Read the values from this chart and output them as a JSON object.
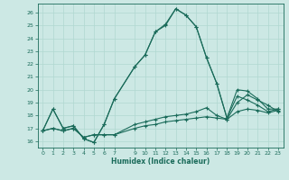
{
  "xlabel": "Humidex (Indice chaleur)",
  "background_color": "#cce8e4",
  "grid_color": "#b0d8d0",
  "line_color": "#1a6b5a",
  "xlim": [
    -0.5,
    23.5
  ],
  "ylim": [
    15.5,
    26.7
  ],
  "xticks": [
    0,
    1,
    2,
    3,
    4,
    5,
    6,
    7,
    9,
    10,
    11,
    12,
    13,
    14,
    15,
    16,
    17,
    18,
    19,
    20,
    21,
    22,
    23
  ],
  "yticks": [
    16,
    17,
    18,
    19,
    20,
    21,
    22,
    23,
    24,
    25,
    26
  ],
  "curve1_x": [
    0,
    1,
    2,
    3,
    4,
    5,
    6,
    7,
    9,
    10,
    11,
    12,
    13,
    14,
    15,
    16,
    17,
    18,
    19,
    20,
    21,
    22,
    23
  ],
  "curve1_y": [
    16.8,
    18.5,
    17.0,
    17.2,
    16.2,
    15.9,
    17.3,
    19.3,
    21.8,
    22.7,
    24.5,
    25.0,
    26.3,
    25.8,
    24.9,
    22.5,
    20.5,
    17.8,
    20.0,
    19.9,
    19.3,
    18.5,
    18.5
  ],
  "curve2_x": [
    0,
    1,
    2,
    3,
    4,
    5,
    6,
    7,
    9,
    10,
    11,
    12,
    13,
    14,
    15,
    16,
    17,
    18,
    19,
    20,
    21,
    22,
    23
  ],
  "curve2_y": [
    16.8,
    18.5,
    17.0,
    17.2,
    16.2,
    15.9,
    17.3,
    19.3,
    21.8,
    22.7,
    24.5,
    25.1,
    26.3,
    25.8,
    24.9,
    22.5,
    20.5,
    17.8,
    19.5,
    19.2,
    18.8,
    18.3,
    18.5
  ],
  "curve3_x": [
    0,
    1,
    2,
    3,
    4,
    5,
    6,
    7,
    9,
    10,
    11,
    12,
    13,
    14,
    15,
    16,
    17,
    18,
    19,
    20,
    21,
    22,
    23
  ],
  "curve3_y": [
    16.8,
    17.0,
    16.8,
    17.0,
    16.3,
    16.5,
    16.5,
    16.5,
    17.0,
    17.2,
    17.3,
    17.5,
    17.6,
    17.7,
    17.8,
    17.9,
    17.8,
    17.7,
    18.3,
    18.5,
    18.4,
    18.2,
    18.4
  ],
  "curve4_x": [
    0,
    1,
    2,
    3,
    4,
    5,
    6,
    7,
    9,
    10,
    11,
    12,
    13,
    14,
    15,
    16,
    17,
    18,
    19,
    20,
    21,
    22,
    23
  ],
  "curve4_y": [
    16.8,
    17.0,
    16.8,
    17.0,
    16.3,
    16.5,
    16.5,
    16.5,
    17.3,
    17.5,
    17.7,
    17.9,
    18.0,
    18.1,
    18.3,
    18.6,
    18.0,
    17.7,
    19.0,
    19.6,
    19.2,
    18.8,
    18.3
  ]
}
